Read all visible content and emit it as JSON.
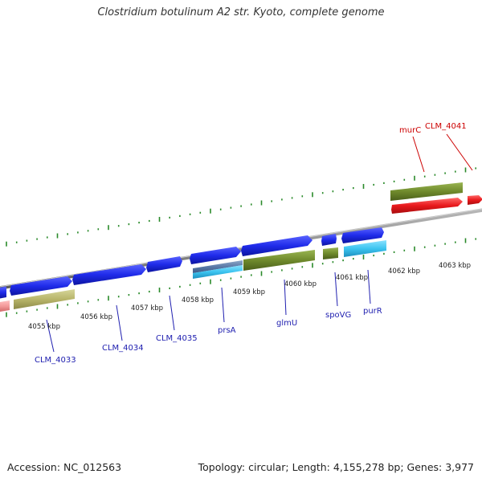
{
  "title": "Clostridium botulinum A2 str. Kyoto, complete genome",
  "footer": {
    "accession": "Accession: NC_012563",
    "summary": "Topology: circular; Length: 4,155,278 bp; Genes: 3,977"
  },
  "colors": {
    "forward_cds": "#1f2bea",
    "reverse_cds": "#6f8a2c",
    "rna_light_blue": "#3cc4f0",
    "highlight_red": "#e8191c",
    "backbone": "#8c8c8c",
    "tick_green": "#2a8a2a",
    "label_blue": "#2020b0",
    "label_red": "#cc0000"
  },
  "kbp_labels": [
    "4055 kbp",
    "4056 kbp",
    "4057 kbp",
    "4058 kbp",
    "4059 kbp",
    "4060 kbp",
    "4061 kbp",
    "4062 kbp",
    "4063 kbp"
  ],
  "gene_labels": {
    "clm4033": "CLM_4033",
    "clm4034": "CLM_4034",
    "clm4035": "CLM_4035",
    "prsA": "prsA",
    "glmU": "glmU",
    "spoVG": "spoVG",
    "purR": "purR",
    "murC": "murC",
    "clm4041": "CLM_4041"
  }
}
